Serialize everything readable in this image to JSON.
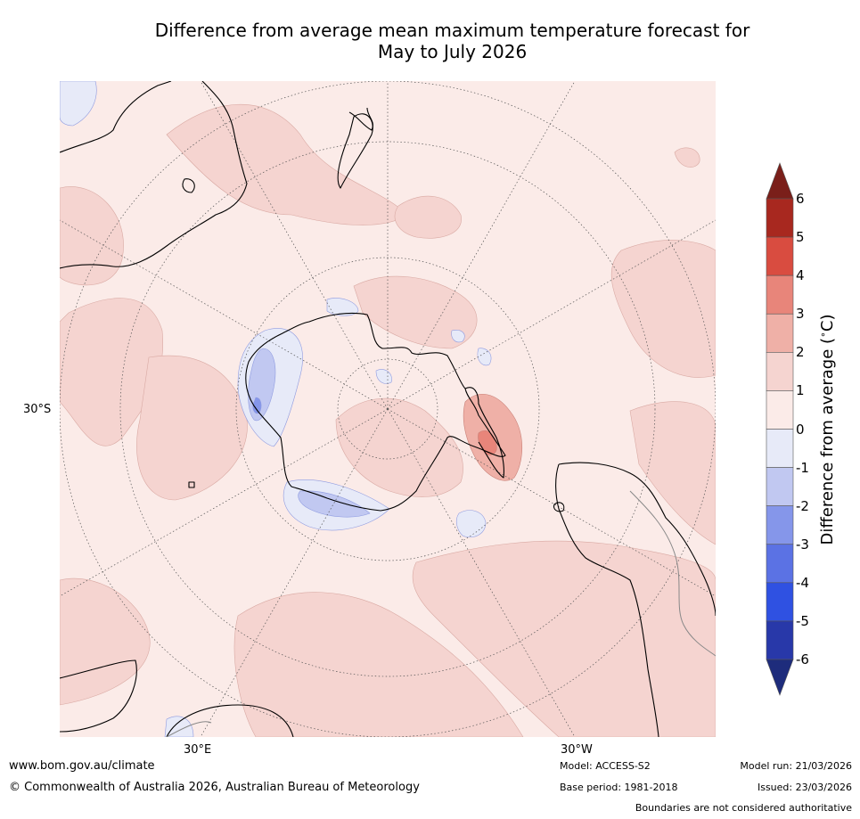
{
  "title": {
    "line1": "Difference from average mean maximum temperature forecast for",
    "line2": "May to July 2026"
  },
  "map": {
    "projection": "south-polar-stereographic",
    "lat_labels": [
      "30°S"
    ],
    "lon_labels": [
      "30°E",
      "30°W"
    ]
  },
  "colorbar": {
    "label": "Difference from average (°C)",
    "label_main": "Difference from average (",
    "label_deg": "∘",
    "label_tail": "C)",
    "ticks": [
      "6",
      "5",
      "4",
      "3",
      "2",
      "1",
      "0",
      "-1",
      "-2",
      "-3",
      "-4",
      "-5",
      "-6"
    ],
    "colors": [
      "#7a1f1a",
      "#a8281f",
      "#d94c40",
      "#e8857a",
      "#efb0a7",
      "#f5d4d0",
      "#fbebe8",
      "#e7eaf8",
      "#c1c8f1",
      "#8596ea",
      "#5b72e4",
      "#2f51e2",
      "#2838a9",
      "#1e2c7c"
    ]
  },
  "footer": {
    "website": "www.bom.gov.au/climate",
    "copyright": "© Commonwealth of Australia 2026, Australian Bureau of Meteorology",
    "model": "Model: ACCESS-S2",
    "base_period": "Base period: 1981-2018",
    "model_run": "Model run: 21/03/2026",
    "issued": "Issued: 23/03/2026",
    "disclaimer": "Boundaries are not considered authoritative"
  }
}
